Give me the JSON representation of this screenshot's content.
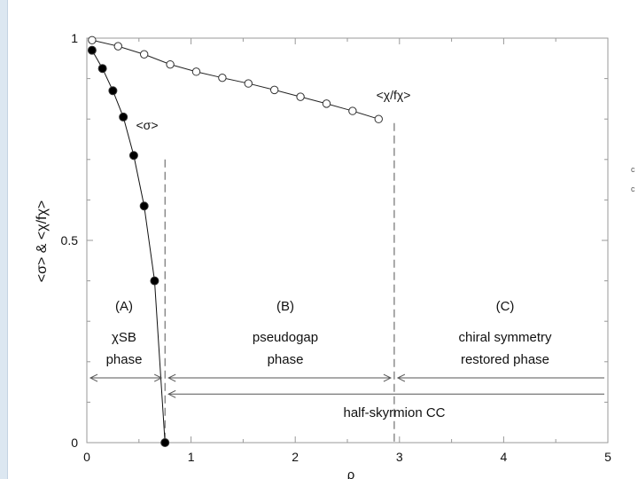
{
  "chart_data": {
    "type": "scatter",
    "title": "",
    "xlabel": "ρ",
    "ylabel": "<σ> & <χ/fχ>",
    "xlim": [
      0,
      5
    ],
    "ylim": [
      0,
      1
    ],
    "x_ticks": [
      "0",
      "1",
      "2",
      "3",
      "4",
      "5"
    ],
    "y_ticks": [
      "0",
      "0.5",
      "1"
    ],
    "grid": false,
    "series": [
      {
        "name": "<χ/fχ>",
        "marker": "open-circle",
        "line": "solid",
        "color": "#222222",
        "x": [
          0.05,
          0.3,
          0.55,
          0.8,
          1.05,
          1.3,
          1.55,
          1.8,
          2.05,
          2.3,
          2.55,
          2.8
        ],
        "y": [
          0.995,
          0.98,
          0.96,
          0.935,
          0.917,
          0.902,
          0.888,
          0.872,
          0.855,
          0.838,
          0.82,
          0.8
        ]
      },
      {
        "name": "<σ>",
        "marker": "filled-circle",
        "line": "solid",
        "color": "#111111",
        "x": [
          0.05,
          0.15,
          0.25,
          0.35,
          0.45,
          0.55,
          0.65,
          0.75
        ],
        "y": [
          0.97,
          0.925,
          0.87,
          0.805,
          0.71,
          0.585,
          0.4,
          0.0
        ]
      }
    ],
    "curve_labels": [
      {
        "text": "<σ>",
        "x": 0.55,
        "y": 0.78
      },
      {
        "text": "<χ/fχ>",
        "x": 2.65,
        "y": 0.84
      }
    ],
    "phase_boundaries": [
      0.75,
      2.95
    ],
    "regions": [
      {
        "label": "(A)",
        "line1": "χSB",
        "line2": "phase",
        "x_center": 0.36
      },
      {
        "label": "(B)",
        "line1": "pseudogap",
        "line2": "phase",
        "x_center": 1.88
      },
      {
        "label": "(C)",
        "line1": "chiral symmetry",
        "line2": "restored phase",
        "x_center": 3.95
      }
    ],
    "half_skyrmion_label": "half-skyrmion CC"
  },
  "accent_color": "#222222"
}
